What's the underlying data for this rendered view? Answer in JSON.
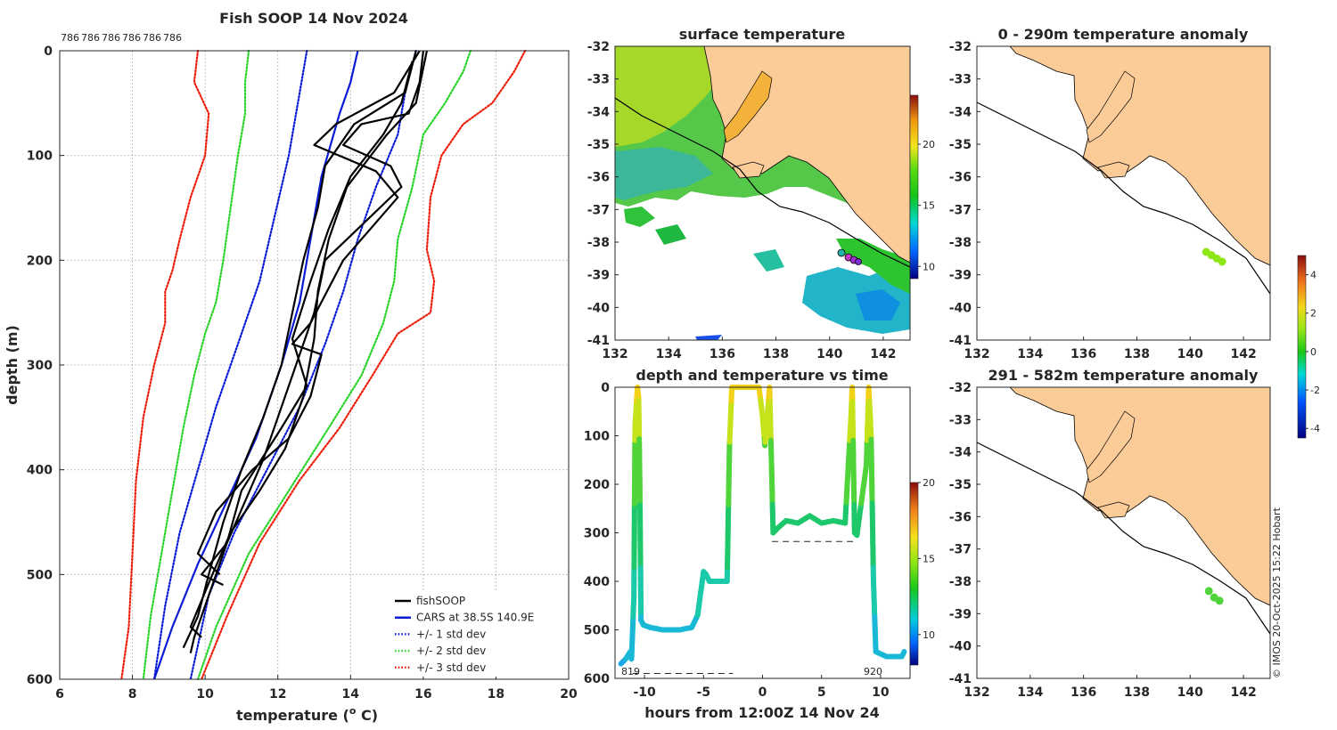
{
  "colors": {
    "cars": "#0a1bd6",
    "sd1": "#0a1bd6",
    "sd2": "#27d427",
    "sd3": "#ee1d0b",
    "fishsoop": "#000000",
    "land": "#fbcb98",
    "coast": "#000000"
  },
  "chart_data": [
    {
      "id": "profile",
      "type": "line",
      "title": "Fish SOOP 14 Nov 2024",
      "top_labels": [
        "786",
        "786",
        "786",
        "786",
        "786",
        "786"
      ],
      "xlabel": "temperature (o C)",
      "xlabel_main": "temperature (",
      "xlabel_sup": "o",
      "xlabel_end": " C)",
      "ylabel": "depth (m)",
      "xlim": [
        6,
        20
      ],
      "ylim": [
        0,
        600
      ],
      "y_reversed": true,
      "grid": true,
      "xticks": [
        "6",
        "8",
        "10",
        "12",
        "14",
        "16",
        "18",
        "20"
      ],
      "yticks": [
        "0",
        "100",
        "200",
        "300",
        "400",
        "500",
        "600"
      ],
      "legend_position": "bottom-right",
      "legend": [
        "fishSOOP",
        "CARS at 38.5S 140.9E",
        "+/- 1 std dev",
        "+/- 2 std dev",
        "+/- 3 std dev"
      ],
      "series": [
        {
          "name": "CARS at 38.5S 140.9E",
          "style": "solid",
          "points": [
            [
              14.2,
              0
            ],
            [
              14,
              30
            ],
            [
              13.7,
              60
            ],
            [
              13.2,
              120
            ],
            [
              12.9,
              180
            ],
            [
              12.6,
              240
            ],
            [
              12.1,
              300
            ],
            [
              11.4,
              370
            ],
            [
              10.6,
              430
            ],
            [
              9.8,
              490
            ],
            [
              9.1,
              550
            ],
            [
              8.6,
              600
            ]
          ]
        },
        {
          "name": "+/- 1 std dev (warm)",
          "style": "dotted",
          "points": [
            [
              15.8,
              0
            ],
            [
              15.5,
              40
            ],
            [
              15.3,
              80
            ],
            [
              14.7,
              130
            ],
            [
              14.2,
              180
            ],
            [
              13.8,
              230
            ],
            [
              13.3,
              280
            ],
            [
              12.6,
              340
            ],
            [
              11.7,
              400
            ],
            [
              10.8,
              460
            ],
            [
              10.1,
              520
            ],
            [
              9.6,
              600
            ]
          ]
        },
        {
          "name": "+/- 1 std dev (cold)",
          "style": "dotted",
          "points": [
            [
              12.8,
              0
            ],
            [
              12.6,
              40
            ],
            [
              12.3,
              100
            ],
            [
              11.9,
              160
            ],
            [
              11.5,
              220
            ],
            [
              10.9,
              280
            ],
            [
              10.3,
              340
            ],
            [
              9.8,
              400
            ],
            [
              9.3,
              460
            ],
            [
              8.9,
              530
            ],
            [
              8.6,
              600
            ]
          ]
        },
        {
          "name": "+/- 2 std dev (warm)",
          "style": "dotted",
          "points": [
            [
              17.3,
              0
            ],
            [
              17.1,
              20
            ],
            [
              16.6,
              50
            ],
            [
              16.0,
              80
            ],
            [
              15.7,
              130
            ],
            [
              15.3,
              180
            ],
            [
              15.2,
              220
            ],
            [
              14.9,
              260
            ],
            [
              14.3,
              310
            ],
            [
              13.4,
              360
            ],
            [
              12.3,
              420
            ],
            [
              11.2,
              480
            ],
            [
              10.3,
              550
            ],
            [
              9.8,
              600
            ]
          ]
        },
        {
          "name": "+/- 2 std dev (cold)",
          "style": "dotted",
          "points": [
            [
              11.2,
              0
            ],
            [
              11.1,
              30
            ],
            [
              11.1,
              60
            ],
            [
              10.9,
              100
            ],
            [
              10.7,
              150
            ],
            [
              10.5,
              200
            ],
            [
              10.3,
              240
            ],
            [
              10,
              270
            ],
            [
              9.7,
              310
            ],
            [
              9.4,
              360
            ],
            [
              9.1,
              420
            ],
            [
              8.8,
              480
            ],
            [
              8.5,
              540
            ],
            [
              8.3,
              600
            ]
          ]
        },
        {
          "name": "+/- 3 std dev (warm)",
          "style": "dotted",
          "points": [
            [
              18.8,
              0
            ],
            [
              18.5,
              20
            ],
            [
              17.9,
              50
            ],
            [
              17.1,
              70
            ],
            [
              16.5,
              100
            ],
            [
              16.2,
              140
            ],
            [
              16.1,
              190
            ],
            [
              16.3,
              220
            ],
            [
              16.2,
              250
            ],
            [
              15.3,
              270
            ],
            [
              14.6,
              310
            ],
            [
              13.7,
              360
            ],
            [
              12.6,
              410
            ],
            [
              11.5,
              470
            ],
            [
              10.6,
              540
            ],
            [
              9.9,
              600
            ]
          ]
        },
        {
          "name": "+/- 3 std dev (cold)",
          "style": "dotted",
          "points": [
            [
              9.8,
              0
            ],
            [
              9.7,
              30
            ],
            [
              10.1,
              60
            ],
            [
              10.0,
              100
            ],
            [
              9.6,
              140
            ],
            [
              9.3,
              180
            ],
            [
              9.1,
              210
            ],
            [
              8.9,
              230
            ],
            [
              8.9,
              260
            ],
            [
              8.6,
              300
            ],
            [
              8.3,
              350
            ],
            [
              8.1,
              410
            ],
            [
              8.0,
              480
            ],
            [
              7.9,
              550
            ],
            [
              7.7,
              600
            ]
          ]
        },
        {
          "name": "fishSOOP",
          "style": "solid",
          "bold": true,
          "profiles": [
            [
              [
                16.0,
                0
              ],
              [
                15.9,
                30
              ],
              [
                15.6,
                60
              ],
              [
                14.3,
                70
              ],
              [
                13.8,
                90
              ],
              [
                15.1,
                110
              ],
              [
                15.4,
                130
              ],
              [
                14.5,
                160
              ],
              [
                13.3,
                200
              ],
              [
                13.0,
                250
              ],
              [
                12.6,
                290
              ],
              [
                12.1,
                340
              ],
              [
                11.6,
                390
              ],
              [
                11.1,
                430
              ],
              [
                10.6,
                470
              ],
              [
                10.3,
                500
              ],
              [
                10.0,
                530
              ],
              [
                9.7,
                560
              ],
              [
                9.6,
                575
              ]
            ],
            [
              [
                15.8,
                0
              ],
              [
                15.5,
                40
              ],
              [
                14.1,
                70
              ],
              [
                13.3,
                110
              ],
              [
                13.1,
                150
              ],
              [
                12.7,
                200
              ],
              [
                12.4,
                250
              ],
              [
                12.1,
                300
              ],
              [
                11.6,
                350
              ],
              [
                11.0,
                400
              ],
              [
                10.5,
                450
              ],
              [
                10.1,
                500
              ],
              [
                9.8,
                540
              ],
              [
                9.4,
                570
              ]
            ],
            [
              [
                16.1,
                0
              ],
              [
                15.8,
                50
              ],
              [
                15.0,
                80
              ],
              [
                13.9,
                130
              ],
              [
                13.4,
                180
              ],
              [
                13.1,
                230
              ],
              [
                13.0,
                275
              ],
              [
                12.7,
                330
              ],
              [
                12.2,
                380
              ],
              [
                11.5,
                420
              ],
              [
                10.7,
                460
              ],
              [
                10.2,
                500
              ],
              [
                9.6,
                550
              ],
              [
                9.9,
                560
              ]
            ],
            [
              [
                15.9,
                0
              ],
              [
                15.2,
                40
              ],
              [
                13.6,
                70
              ],
              [
                13.0,
                90
              ],
              [
                14.7,
                115
              ],
              [
                15.3,
                140
              ],
              [
                13.8,
                200
              ],
              [
                12.9,
                260
              ],
              [
                12.4,
                280
              ],
              [
                13.2,
                290
              ],
              [
                12.9,
                330
              ],
              [
                12.3,
                370
              ],
              [
                11.3,
                400
              ],
              [
                10.3,
                440
              ],
              [
                9.8,
                480
              ],
              [
                10.4,
                500
              ]
            ],
            [
              [
                15.7,
                10
              ],
              [
                15.4,
                50
              ],
              [
                14.9,
                80
              ],
              [
                14.0,
                120
              ],
              [
                13.4,
                170
              ],
              [
                12.9,
                220
              ],
              [
                12.4,
                275
              ],
              [
                12.8,
                320
              ],
              [
                12.1,
                360
              ],
              [
                11.0,
                420
              ],
              [
                10.6,
                470
              ],
              [
                9.9,
                500
              ],
              [
                10.5,
                510
              ]
            ]
          ]
        }
      ]
    },
    {
      "id": "time",
      "type": "scatter",
      "title": "depth and temperature vs time",
      "xlabel": "hours from 12:00Z 14 Nov 24",
      "xlim": [
        -12.5,
        12.5
      ],
      "ylim": [
        0,
        600
      ],
      "y_reversed": true,
      "xticks": [
        "-10",
        "-5",
        "0",
        "5",
        "10"
      ],
      "yticks": [
        "0",
        "100",
        "200",
        "300",
        "400",
        "500",
        "600"
      ],
      "colorbar": {
        "ticks": [
          "10",
          "15",
          "20"
        ],
        "range": [
          8,
          20
        ]
      },
      "annotations": [
        "819",
        "920"
      ],
      "track": [
        [
          -12,
          570
        ],
        [
          -11.6,
          560
        ],
        [
          -11.2,
          545
        ],
        [
          -11.1,
          560
        ],
        [
          -10.9,
          430
        ],
        [
          -10.8,
          80
        ],
        [
          -10.6,
          0
        ],
        [
          -10.5,
          20
        ],
        [
          -10.4,
          200
        ],
        [
          -10.3,
          480
        ],
        [
          -10.1,
          490
        ],
        [
          -9.5,
          495
        ],
        [
          -8.5,
          500
        ],
        [
          -7,
          500
        ],
        [
          -6,
          495
        ],
        [
          -5.5,
          470
        ],
        [
          -5,
          380
        ],
        [
          -4.8,
          385
        ],
        [
          -4.5,
          400
        ],
        [
          -3,
          400
        ],
        [
          -2.8,
          120
        ],
        [
          -2.6,
          0
        ],
        [
          -0.3,
          0
        ],
        [
          0,
          60
        ],
        [
          0.2,
          120
        ],
        [
          0.6,
          0
        ],
        [
          0.9,
          300
        ],
        [
          1.3,
          290
        ],
        [
          2,
          275
        ],
        [
          3,
          280
        ],
        [
          4,
          265
        ],
        [
          5,
          280
        ],
        [
          6,
          275
        ],
        [
          7,
          280
        ],
        [
          7.5,
          60
        ],
        [
          7.6,
          0
        ],
        [
          7.8,
          300
        ],
        [
          8,
          305
        ],
        [
          8.8,
          160
        ],
        [
          9,
          0
        ],
        [
          9.2,
          100
        ],
        [
          9.4,
          400
        ],
        [
          9.6,
          545
        ],
        [
          10.5,
          555
        ],
        [
          11,
          555
        ],
        [
          11.8,
          555
        ],
        [
          12,
          545
        ]
      ],
      "dashes": [
        [
          -11,
          590,
          -2.5,
          590
        ],
        [
          0.8,
          318,
          7.8,
          318
        ]
      ]
    },
    {
      "id": "sst",
      "type": "heatmap",
      "title": "surface temperature",
      "xlim": [
        132,
        143
      ],
      "ylim": [
        -41,
        -32
      ],
      "xticks": [
        "132",
        "134",
        "136",
        "138",
        "140",
        "142"
      ],
      "yticks": [
        "-32",
        "-33",
        "-34",
        "-35",
        "-36",
        "-37",
        "-38",
        "-39",
        "-40",
        "-41"
      ],
      "colorbar": {
        "ticks": [
          "10",
          "15",
          "20"
        ],
        "range": [
          9,
          24
        ]
      }
    },
    {
      "id": "anom1",
      "type": "scatter",
      "title": "0 - 290m temperature anomaly",
      "xlim": [
        132,
        143
      ],
      "ylim": [
        -41,
        -32
      ],
      "xticks": [
        "132",
        "134",
        "136",
        "138",
        "140",
        "142"
      ],
      "yticks": [
        "-32",
        "-33",
        "-34",
        "-35",
        "-36",
        "-37",
        "-38",
        "-39",
        "-40",
        "-41"
      ],
      "points": [
        [
          140.6,
          -38.3
        ],
        [
          140.8,
          -38.4
        ],
        [
          141.0,
          -38.5
        ],
        [
          141.2,
          -38.6
        ]
      ]
    },
    {
      "id": "anom2",
      "type": "scatter",
      "title": "291 - 582m temperature anomaly",
      "xlim": [
        132,
        143
      ],
      "ylim": [
        -41,
        -32
      ],
      "xticks": [
        "132",
        "134",
        "136",
        "138",
        "140",
        "142"
      ],
      "yticks": [
        "-32",
        "-33",
        "-34",
        "-35",
        "-36",
        "-37",
        "-38",
        "-39",
        "-40",
        "-41"
      ],
      "points": [
        [
          140.7,
          -38.3
        ],
        [
          140.9,
          -38.5
        ],
        [
          141.1,
          -38.6
        ]
      ]
    },
    {
      "id": "anom_colorbar",
      "type": "colorbar",
      "ticks": [
        "4",
        "2",
        "0",
        "-2",
        "-4"
      ],
      "range": [
        -4.5,
        5
      ]
    }
  ],
  "credit": "© IMOS 20-Oct-2025 15:22 Hobart"
}
